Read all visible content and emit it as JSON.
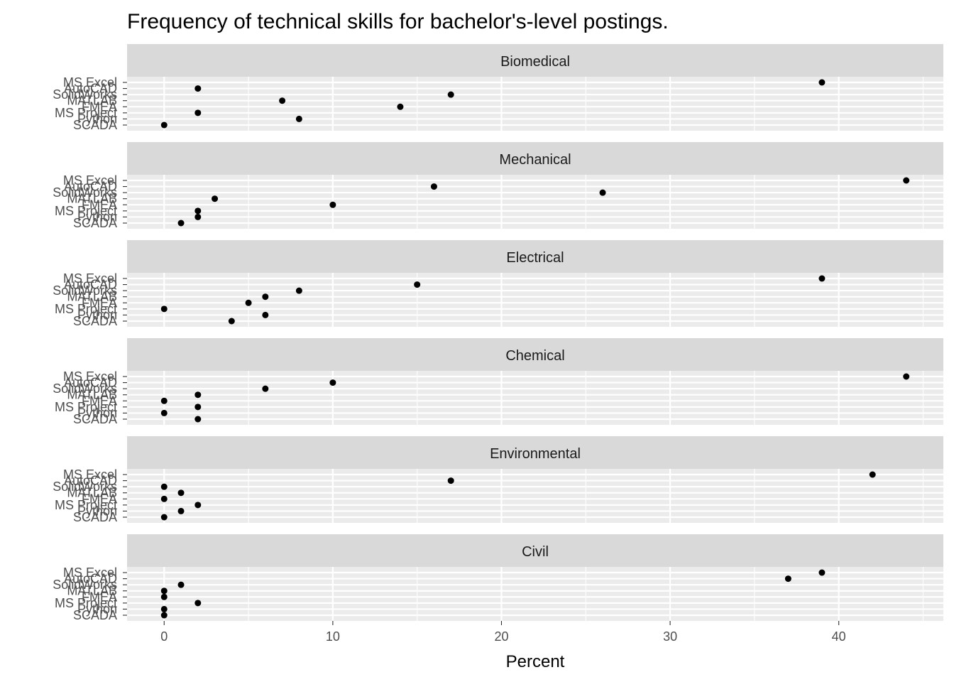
{
  "chart_data": {
    "type": "scatter",
    "title": "Frequency of technical skills for bachelor's-level postings.",
    "xlabel": "Percent",
    "ylabel": "",
    "xlim": [
      -2.2,
      46.2
    ],
    "xticks": [
      0,
      10,
      20,
      30,
      40
    ],
    "skills": [
      "MS Excel",
      "AutoCAD",
      "SolidWorks",
      "MATLAB",
      "FMEA",
      "MS Project",
      "Python",
      "SCADA"
    ],
    "grid": true,
    "legend": "none",
    "colors": {
      "panel_bg": "#ebebeb",
      "strip_bg": "#d9d9d9",
      "grid_major": "#ffffff",
      "point": "#000000"
    },
    "facets": [
      {
        "name": "Biomedical",
        "values": [
          39,
          2,
          17,
          7,
          14,
          2,
          8,
          0
        ]
      },
      {
        "name": "Mechanical",
        "values": [
          44,
          16,
          26,
          3,
          10,
          2,
          2,
          1
        ]
      },
      {
        "name": "Electrical",
        "values": [
          39,
          15,
          8,
          6,
          5,
          0,
          6,
          4
        ]
      },
      {
        "name": "Chemical",
        "values": [
          44,
          10,
          6,
          2,
          0,
          2,
          0,
          2
        ]
      },
      {
        "name": "Environmental",
        "values": [
          42,
          17,
          0,
          1,
          0,
          2,
          1,
          0
        ]
      },
      {
        "name": "Civil",
        "values": [
          39,
          37,
          1,
          0,
          0,
          2,
          0,
          0
        ]
      }
    ]
  }
}
